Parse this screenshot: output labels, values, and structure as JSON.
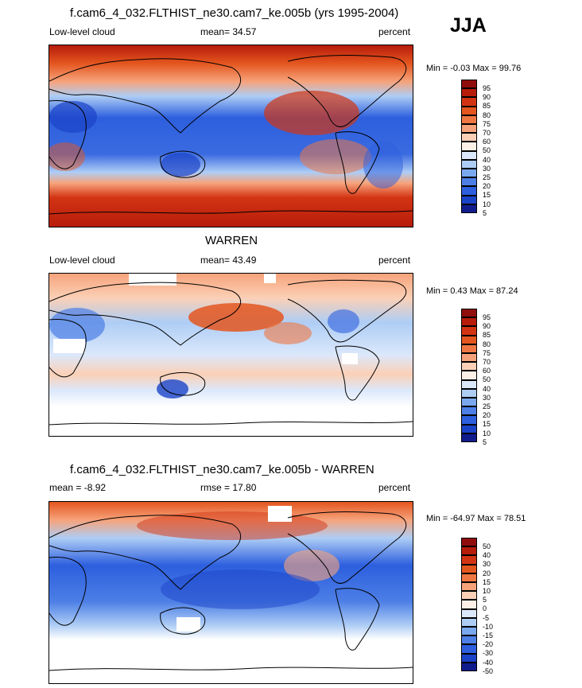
{
  "season": "JJA",
  "panels": [
    {
      "title": "f.cam6_4_032.FLTHIST_ne30.cam7_ke.005b (yrs 1995-2004)",
      "left_label": "Low-level cloud",
      "center_label": "mean=  34.57",
      "right_label": "percent",
      "minmax": "Min =  -0.03 Max =  99.76",
      "legend": [
        "95",
        "90",
        "85",
        "80",
        "75",
        "70",
        "60",
        "50",
        "40",
        "30",
        "25",
        "20",
        "15",
        "10",
        "5"
      ],
      "colors": [
        "#8f0d0d",
        "#b71c0b",
        "#d23413",
        "#e4561f",
        "#ef7743",
        "#f6a37b",
        "#fbd0b6",
        "#fdf0e6",
        "#dbe8fb",
        "#aecdf5",
        "#7aa8ef",
        "#4d7fe6",
        "#2d5fde",
        "#1b43c7",
        "#111c8c"
      ]
    },
    {
      "title": "WARREN",
      "left_label": "Low-level cloud",
      "center_label": "mean=  43.49",
      "right_label": "percent",
      "minmax": "Min =   0.43 Max =  87.24",
      "legend": [
        "95",
        "90",
        "85",
        "80",
        "75",
        "70",
        "60",
        "50",
        "40",
        "30",
        "25",
        "20",
        "15",
        "10",
        "5"
      ],
      "colors": [
        "#8f0d0d",
        "#b71c0b",
        "#d23413",
        "#e4561f",
        "#ef7743",
        "#f6a37b",
        "#fbd0b6",
        "#fdf0e6",
        "#dbe8fb",
        "#aecdf5",
        "#7aa8ef",
        "#4d7fe6",
        "#2d5fde",
        "#1b43c7",
        "#111c8c"
      ]
    },
    {
      "title": "f.cam6_4_032.FLTHIST_ne30.cam7_ke.005b - WARREN",
      "left_label": "mean =  -8.92",
      "center_label": "rmse =  17.80",
      "right_label": "percent",
      "minmax": "Min = -64.97 Max =  78.51",
      "legend": [
        "50",
        "40",
        "30",
        "20",
        "15",
        "10",
        "5",
        "0",
        "-5",
        "-10",
        "-15",
        "-20",
        "-30",
        "-40",
        "-50"
      ],
      "colors": [
        "#8f0d0d",
        "#b71c0b",
        "#d23413",
        "#e4561f",
        "#ef7743",
        "#f6a37b",
        "#fbd0b6",
        "#fdf0e6",
        "#dbe8fb",
        "#aecdf5",
        "#7aa8ef",
        "#4d7fe6",
        "#2d5fde",
        "#1b43c7",
        "#111c8c"
      ]
    }
  ]
}
